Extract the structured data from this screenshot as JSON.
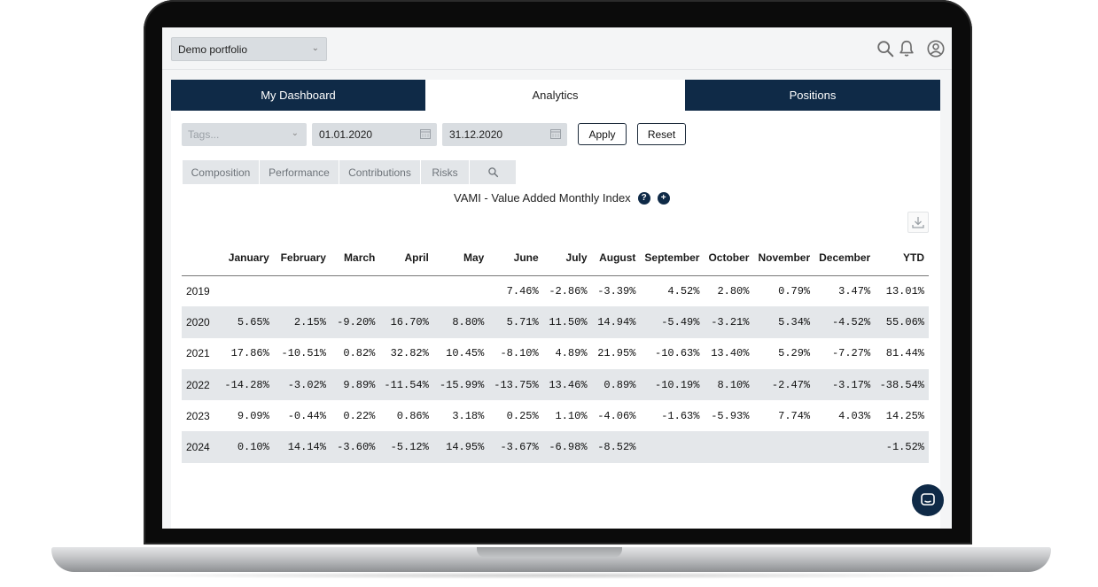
{
  "header": {
    "portfolio_select": "Demo portfolio",
    "icons": [
      "search-icon",
      "bell-icon",
      "user-icon"
    ]
  },
  "tabs": [
    {
      "label": "My Dashboard"
    },
    {
      "label": "Analytics"
    },
    {
      "label": "Positions"
    }
  ],
  "filters": {
    "tags_placeholder": "Tags...",
    "start_date": "01.01.2020",
    "end_date": "31.12.2020",
    "apply_label": "Apply",
    "reset_label": "Reset"
  },
  "subtabs": [
    {
      "label": "Composition"
    },
    {
      "label": "Performance"
    },
    {
      "label": "Contributions"
    },
    {
      "label": "Risks"
    }
  ],
  "vami": {
    "title": "VAMI - Value Added Monthly Index",
    "help_glyph": "?",
    "add_glyph": "+"
  },
  "table": {
    "columns": [
      "",
      "January",
      "February",
      "March",
      "April",
      "May",
      "June",
      "July",
      "August",
      "September",
      "October",
      "November",
      "December",
      "YTD"
    ],
    "rows": [
      [
        "2019",
        "",
        "",
        "",
        "",
        "",
        "7.46%",
        "-2.86%",
        "-3.39%",
        "4.52%",
        "2.80%",
        "0.79%",
        "3.47%",
        "13.01%"
      ],
      [
        "2020",
        "5.65%",
        "2.15%",
        "-9.20%",
        "16.70%",
        "8.80%",
        "5.71%",
        "11.50%",
        "14.94%",
        "-5.49%",
        "-3.21%",
        "5.34%",
        "-4.52%",
        "55.06%"
      ],
      [
        "2021",
        "17.86%",
        "-10.51%",
        "0.82%",
        "32.82%",
        "10.45%",
        "-8.10%",
        "4.89%",
        "21.95%",
        "-10.63%",
        "13.40%",
        "5.29%",
        "-7.27%",
        "81.44%"
      ],
      [
        "2022",
        "-14.28%",
        "-3.02%",
        "9.89%",
        "-11.54%",
        "-15.99%",
        "-13.75%",
        "13.46%",
        "0.89%",
        "-10.19%",
        "8.10%",
        "-2.47%",
        "-3.17%",
        "-38.54%"
      ],
      [
        "2023",
        "9.09%",
        "-0.44%",
        "0.22%",
        "0.86%",
        "3.18%",
        "0.25%",
        "1.10%",
        "-4.06%",
        "-1.63%",
        "-5.93%",
        "7.74%",
        "4.03%",
        "14.25%"
      ],
      [
        "2024",
        "0.10%",
        "14.14%",
        "-3.60%",
        "-5.12%",
        "14.95%",
        "-3.67%",
        "-6.98%",
        "-8.52%",
        "",
        "",
        "",
        "",
        "-1.52%"
      ]
    ]
  },
  "colors": {
    "navy": "#0f2a47",
    "stripe": "#e4e7ea",
    "input_bg": "#d9dde1"
  }
}
